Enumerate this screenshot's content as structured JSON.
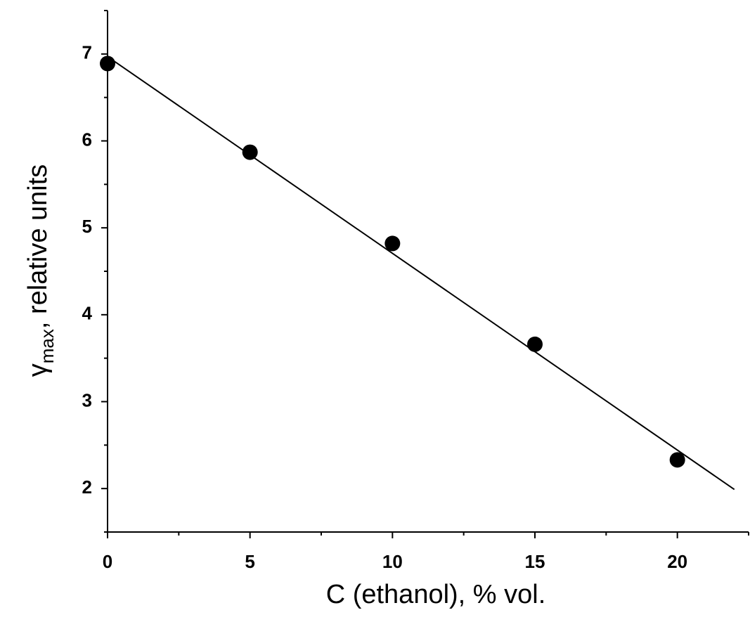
{
  "chart_data": {
    "type": "scatter",
    "x": [
      0,
      5,
      10,
      15,
      20
    ],
    "values": [
      6.89,
      5.87,
      4.82,
      3.66,
      2.33
    ],
    "color": "#000000",
    "fit": {
      "x": [
        0,
        22
      ],
      "values": [
        6.97,
        1.99
      ],
      "color": "#000000"
    },
    "xlim": [
      0,
      22.5
    ],
    "xticks": [
      0,
      5,
      10,
      15,
      20
    ],
    "xminorticks": [
      2.5,
      7.5,
      12.5,
      17.5,
      22.5
    ],
    "ylim": [
      1.5,
      7.5
    ],
    "yticks": [
      2,
      3,
      4,
      5,
      6,
      7
    ],
    "yminorticks": [
      1.5,
      2.5,
      3.5,
      4.5,
      5.5,
      6.5,
      7.5
    ],
    "xlabel": "C (ethanol), % vol.",
    "ylabel": {
      "symbol": "γ",
      "subscript": "max",
      "text": ", relative units"
    },
    "grid": false
  }
}
